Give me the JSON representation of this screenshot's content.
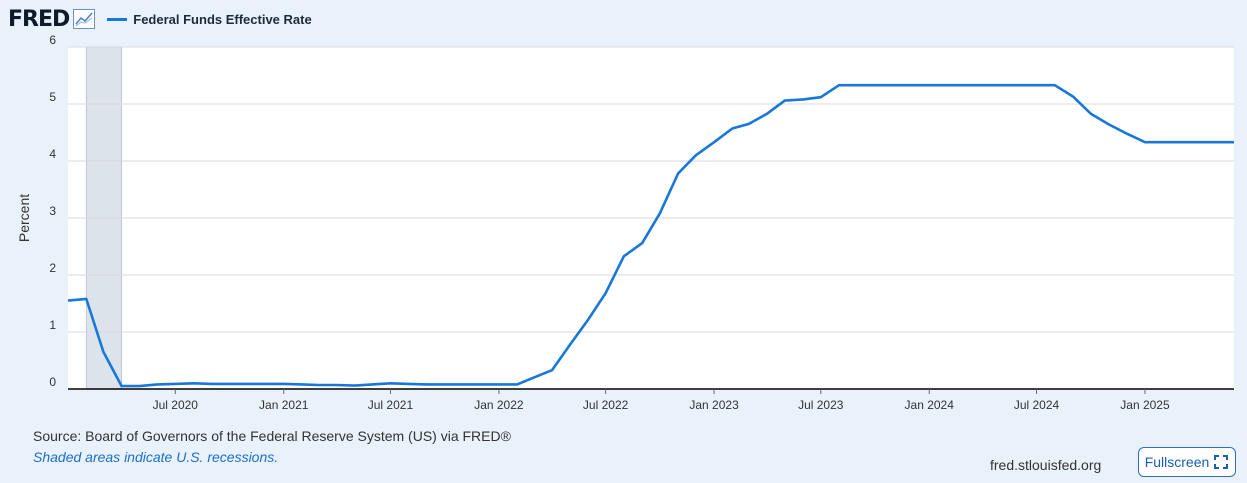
{
  "header": {
    "logo_text": "FRED",
    "logo_icon": "line-chart-icon",
    "legend_label": "Federal Funds Effective Rate"
  },
  "footer": {
    "source": "Source: Board of Governors of the Federal Reserve System (US) via FRED®",
    "recession_note": "Shaded areas indicate U.S. recessions.",
    "site": "fred.stlouisfed.org",
    "fullscreen_label": "Fullscreen",
    "fullscreen_icon": "expand-icon"
  },
  "colors": {
    "series": "#1877d9",
    "recession": "#dde3ea",
    "grid": "#d5dae0",
    "background": "#e9f1fa"
  },
  "chart_data": {
    "type": "line",
    "title": "",
    "xlabel": "",
    "ylabel": "Percent",
    "ylim": [
      0,
      6
    ],
    "yticks": [
      0,
      1,
      2,
      3,
      4,
      5,
      6
    ],
    "xlim": [
      "2020-01-01",
      "2025-06-01"
    ],
    "xticks": [
      {
        "date": "2020-07-01",
        "label": "Jul 2020"
      },
      {
        "date": "2021-01-01",
        "label": "Jan 2021"
      },
      {
        "date": "2021-07-01",
        "label": "Jul 2021"
      },
      {
        "date": "2022-01-01",
        "label": "Jan 2022"
      },
      {
        "date": "2022-07-01",
        "label": "Jul 2022"
      },
      {
        "date": "2023-01-01",
        "label": "Jan 2023"
      },
      {
        "date": "2023-07-01",
        "label": "Jul 2023"
      },
      {
        "date": "2024-01-01",
        "label": "Jan 2024"
      },
      {
        "date": "2024-07-01",
        "label": "Jul 2024"
      },
      {
        "date": "2025-01-01",
        "label": "Jan 2025"
      }
    ],
    "recessions": [
      {
        "start": "2020-02-01",
        "end": "2020-04-01"
      }
    ],
    "grid": true,
    "series": [
      {
        "name": "Federal Funds Effective Rate",
        "x": [
          "2020-01-01",
          "2020-02-01",
          "2020-03-01",
          "2020-04-01",
          "2020-05-01",
          "2020-06-01",
          "2020-07-01",
          "2020-08-01",
          "2020-09-01",
          "2020-10-01",
          "2020-11-01",
          "2020-12-01",
          "2021-01-01",
          "2021-02-01",
          "2021-03-01",
          "2021-04-01",
          "2021-05-01",
          "2021-06-01",
          "2021-07-01",
          "2021-08-01",
          "2021-09-01",
          "2021-10-01",
          "2021-11-01",
          "2021-12-01",
          "2022-01-01",
          "2022-02-01",
          "2022-03-01",
          "2022-04-01",
          "2022-05-01",
          "2022-06-01",
          "2022-07-01",
          "2022-08-01",
          "2022-09-01",
          "2022-10-01",
          "2022-11-01",
          "2022-12-01",
          "2023-01-01",
          "2023-02-01",
          "2023-03-01",
          "2023-04-01",
          "2023-05-01",
          "2023-06-01",
          "2023-07-01",
          "2023-08-01",
          "2023-09-01",
          "2023-10-01",
          "2023-11-01",
          "2023-12-01",
          "2024-01-01",
          "2024-02-01",
          "2024-03-01",
          "2024-04-01",
          "2024-05-01",
          "2024-06-01",
          "2024-07-01",
          "2024-08-01",
          "2024-09-01",
          "2024-10-01",
          "2024-11-01",
          "2024-12-01",
          "2025-01-01",
          "2025-02-01",
          "2025-03-01",
          "2025-04-01",
          "2025-05-01",
          "2025-06-01"
        ],
        "y": [
          1.55,
          1.58,
          0.65,
          0.05,
          0.05,
          0.08,
          0.09,
          0.1,
          0.09,
          0.09,
          0.09,
          0.09,
          0.09,
          0.08,
          0.07,
          0.07,
          0.06,
          0.08,
          0.1,
          0.09,
          0.08,
          0.08,
          0.08,
          0.08,
          0.08,
          0.08,
          0.2,
          0.33,
          0.77,
          1.21,
          1.68,
          2.33,
          2.56,
          3.08,
          3.78,
          4.1,
          4.33,
          4.57,
          4.65,
          4.83,
          5.06,
          5.08,
          5.12,
          5.33,
          5.33,
          5.33,
          5.33,
          5.33,
          5.33,
          5.33,
          5.33,
          5.33,
          5.33,
          5.33,
          5.33,
          5.33,
          5.13,
          4.83,
          4.64,
          4.48,
          4.33,
          4.33,
          4.33,
          4.33,
          4.33,
          4.33
        ]
      }
    ]
  }
}
